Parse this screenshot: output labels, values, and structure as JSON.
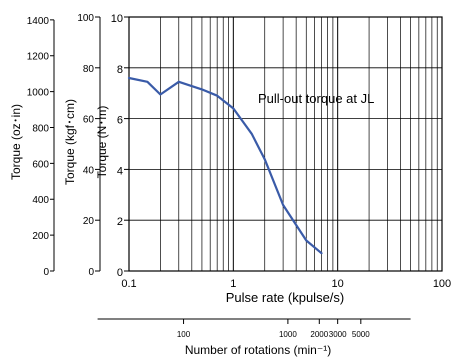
{
  "chart_data": {
    "type": "line",
    "annotation": "Pull-out torque at JL",
    "x": [
      0.1,
      0.15,
      0.2,
      0.3,
      0.5,
      0.7,
      1.0,
      1.5,
      2.0,
      3.0,
      5.0,
      7.0
    ],
    "series": [
      {
        "values": [
          7.6,
          7.45,
          6.95,
          7.45,
          7.15,
          6.9,
          6.4,
          5.4,
          4.4,
          2.6,
          1.2,
          0.7
        ]
      }
    ],
    "xscale": "log",
    "xlim": [
      0.1,
      100
    ],
    "xticks": [
      "0.1",
      "1",
      "10",
      "100"
    ],
    "xlabel": "Pulse rate (kpulse/s)",
    "ylim": [
      0,
      10
    ],
    "y_axes": {
      "nm": {
        "label": "Torque (N･m)",
        "ticks": [
          "0",
          "2",
          "4",
          "6",
          "8",
          "10"
        ],
        "values": [
          0,
          2,
          4,
          6,
          8,
          10
        ]
      },
      "kgfcm": {
        "label": "Torque (kgf･cm)",
        "ticks": [
          "0",
          "20",
          "40",
          "60",
          "80",
          "100"
        ],
        "values": [
          0,
          20,
          40,
          60,
          80,
          100
        ]
      },
      "ozin": {
        "label": "Torque (oz･in)",
        "ticks": [
          "0",
          "200",
          "400",
          "600",
          "800",
          "1000",
          "1200",
          "1400"
        ],
        "values": [
          0,
          200,
          400,
          600,
          800,
          1000,
          1200,
          1400
        ]
      }
    },
    "secondary_x": {
      "label": "Number of rotations (min⁻¹)",
      "ticks": [
        "100",
        "1000",
        "2000",
        "3000",
        "5000"
      ],
      "values": [
        100,
        1000,
        2000,
        3000,
        5000
      ]
    },
    "grid": true,
    "line_color": "#3a5ba8"
  }
}
